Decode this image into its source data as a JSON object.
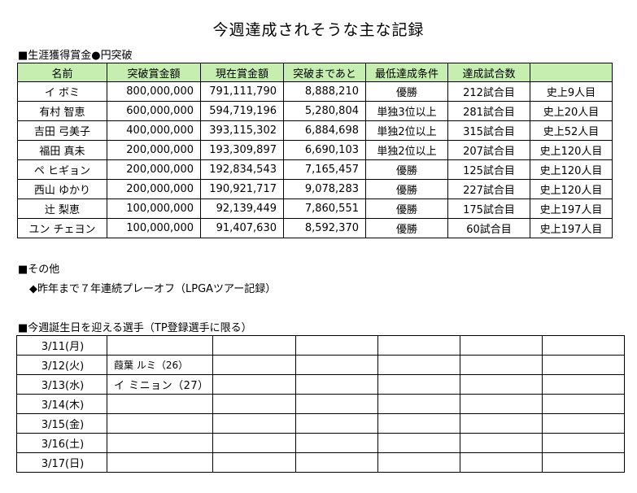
{
  "title": "今週達成されそうな主な記録",
  "section_prize": "■生涯獲得賞金●円突破",
  "prize_table": {
    "headers": [
      "名前",
      "突破賞金額",
      "現在賞金額",
      "突破まであと",
      "最低達成条件",
      "達成試合数",
      ""
    ],
    "rows": [
      [
        "イ ボミ",
        "800,000,000",
        "791,111,790",
        "8,888,210",
        "優勝",
        "212試合目",
        "史上9人目"
      ],
      [
        "有村 智恵",
        "600,000,000",
        "594,719,196",
        "5,280,804",
        "単独3位以上",
        "281試合目",
        "史上20人目"
      ],
      [
        "吉田 弓美子",
        "400,000,000",
        "393,115,302",
        "6,884,698",
        "単独2位以上",
        "315試合目",
        "史上52人目"
      ],
      [
        "福田 真未",
        "200,000,000",
        "193,309,897",
        "6,690,103",
        "単独2位以上",
        "207試合目",
        "史上120人目"
      ],
      [
        "ペ ヒギョン",
        "200,000,000",
        "192,834,543",
        "7,165,457",
        "優勝",
        "125試合目",
        "史上120人目"
      ],
      [
        "西山 ゆかり",
        "200,000,000",
        "190,921,717",
        "9,078,283",
        "優勝",
        "227試合目",
        "史上120人目"
      ],
      [
        "辻 梨恵",
        "100,000,000",
        "92,139,449",
        "7,860,551",
        "優勝",
        "175試合目",
        "史上197人目"
      ],
      [
        "ユン チェヨン",
        "100,000,000",
        "91,407,630",
        "8,592,370",
        "優勝",
        "60試合目",
        "史上197人目"
      ]
    ]
  },
  "section_other": "■その他",
  "other_item": "◆昨年まで７年連続プレーオフ（LPGAツアー記録）",
  "section_birthday": "■今週誕生日を迎える選手（TP登録選手に限る）",
  "birthdays": [
    {
      "date": "3/11(月)",
      "name": ""
    },
    {
      "date": "3/12(火)",
      "name": "葭葉 ルミ（26）"
    },
    {
      "date": "3/13(水)",
      "name": "イ ミニョン（27）"
    },
    {
      "date": "3/14(木)",
      "name": ""
    },
    {
      "date": "3/15(金)",
      "name": ""
    },
    {
      "date": "3/16(土)",
      "name": ""
    },
    {
      "date": "3/17(日)",
      "name": ""
    }
  ],
  "colors": {
    "header_bg": "#c6eeb0"
  }
}
